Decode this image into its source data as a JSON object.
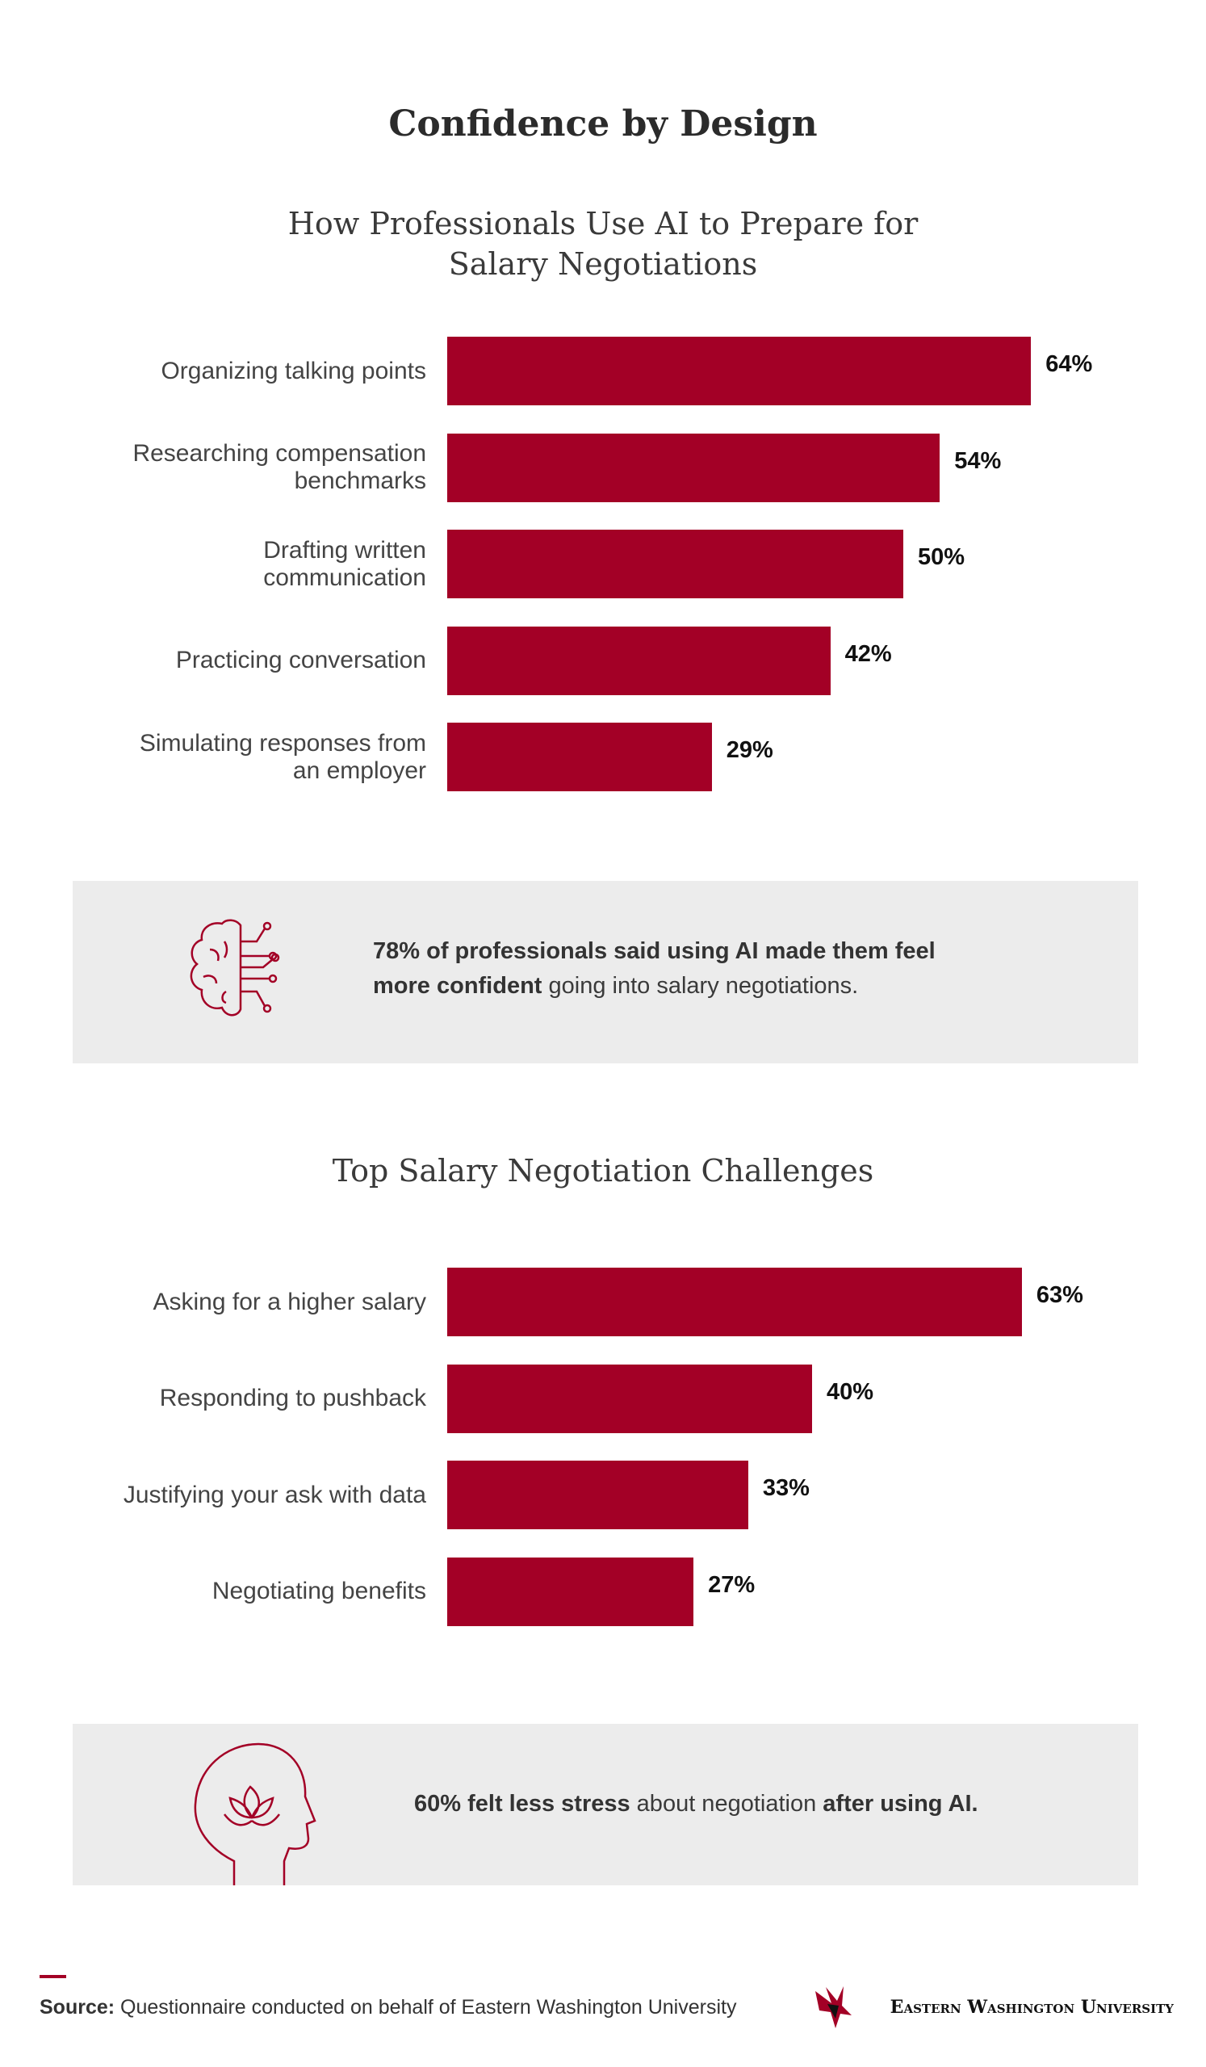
{
  "title": "Confidence by Design",
  "chart_data": [
    {
      "type": "bar",
      "orientation": "horizontal",
      "title": "How Professionals Use AI to Prepare for Salary Negotiations",
      "categories": [
        "Organizing talking points",
        "Researching compensation benchmarks",
        "Drafting written communication",
        "Practicing conversation",
        "Simulating responses from an employer"
      ],
      "values": [
        64,
        54,
        50,
        42,
        29
      ],
      "value_labels": [
        "64%",
        "54%",
        "50%",
        "42%",
        "29%"
      ],
      "color": "#a30026",
      "xlim": [
        0,
        80
      ]
    },
    {
      "type": "bar",
      "orientation": "horizontal",
      "title": "Top Salary Negotiation Challenges",
      "categories": [
        "Asking for a higher salary",
        "Responding to pushback",
        "Justifying your ask with data",
        "Negotiating benefits"
      ],
      "values": [
        63,
        40,
        33,
        27
      ],
      "value_labels": [
        "63%",
        "40%",
        "33%",
        "27%"
      ],
      "color": "#a30026",
      "xlim": [
        0,
        80
      ]
    }
  ],
  "callouts": [
    {
      "segments": [
        {
          "text": "78% of professionals said using AI made them feel more confident",
          "bold": true
        },
        {
          "text": " going into salary negotiations.",
          "bold": false
        }
      ]
    },
    {
      "segments": [
        {
          "text": "60% felt less stress",
          "bold": true
        },
        {
          "text": " about negotiation ",
          "bold": false
        },
        {
          "text": "after using AI.",
          "bold": true
        }
      ]
    }
  ],
  "source": {
    "label": "Source:",
    "text": " Questionnaire conducted on behalf of Eastern Washington University"
  },
  "logo": "Eastern Washington University"
}
